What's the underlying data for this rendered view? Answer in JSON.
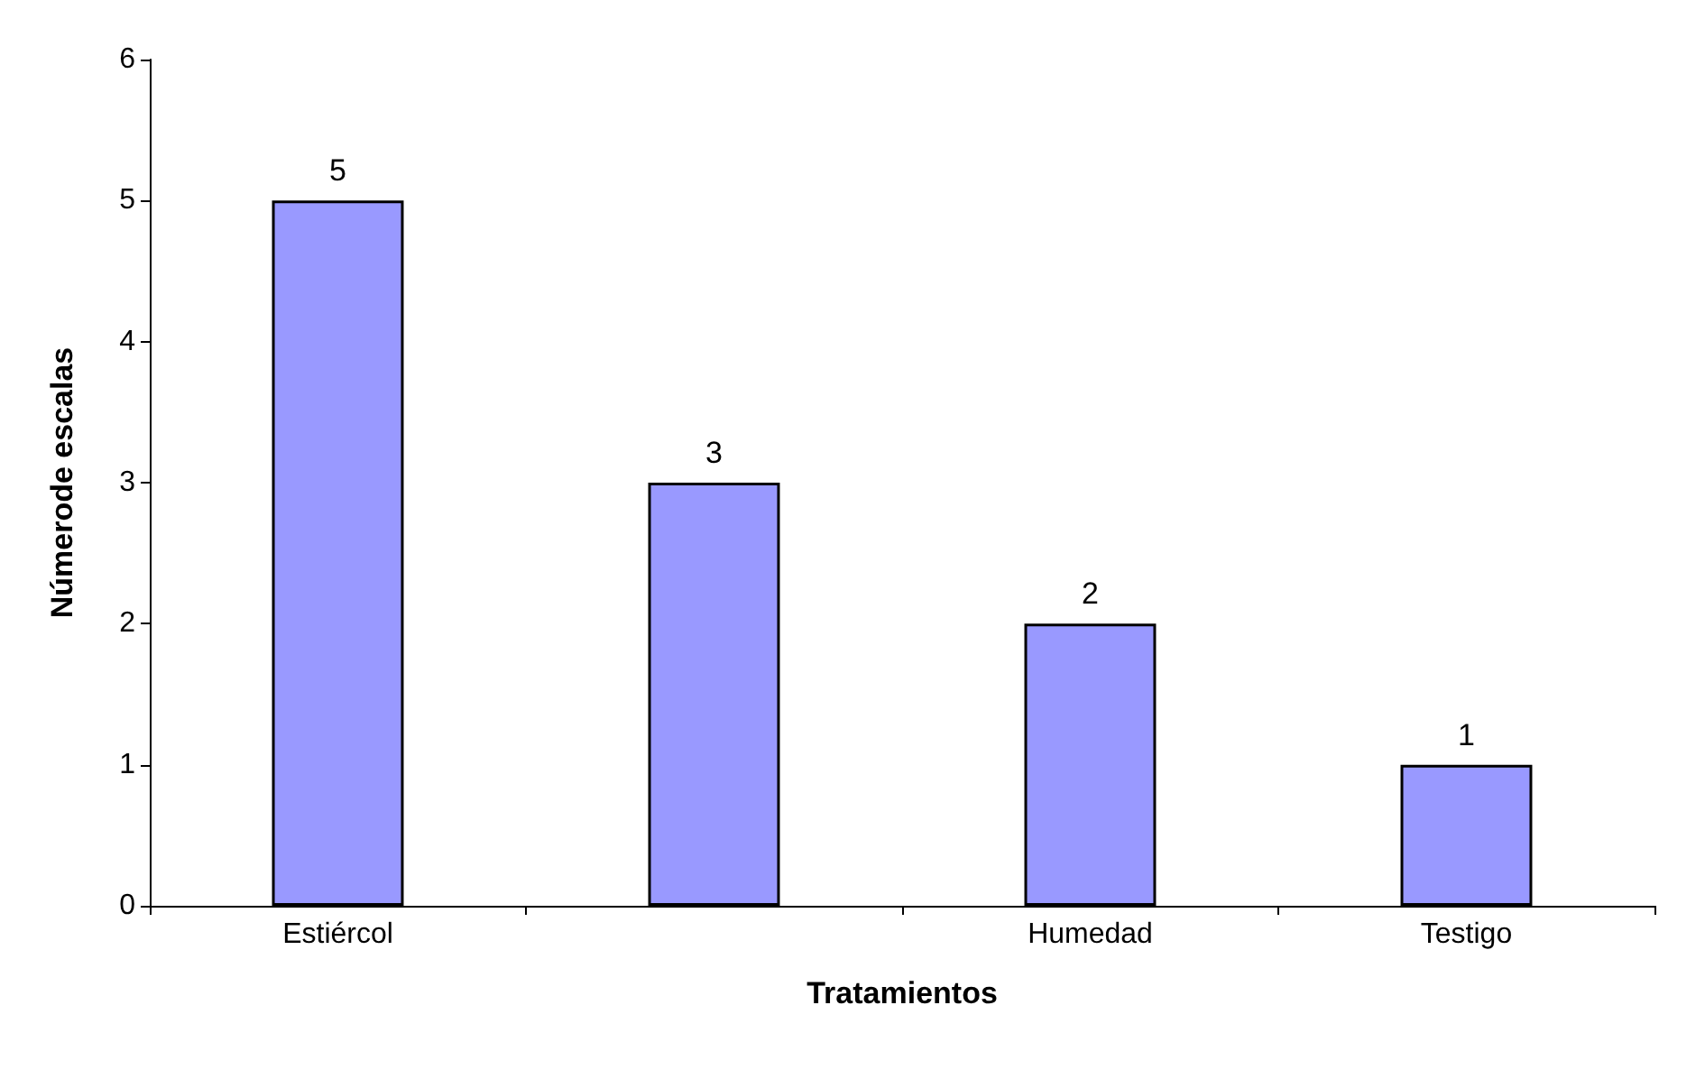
{
  "chart_data": {
    "type": "bar",
    "xlabel": "Tratamientos",
    "ylabel": "Númerode escalas",
    "categories": [
      "Estiércol",
      null,
      "Humedad",
      "Testigo"
    ],
    "values": [
      5,
      3,
      2,
      1
    ],
    "color": "#9999ff",
    "ylim": [
      0,
      6
    ],
    "yticks": [
      0,
      1,
      2,
      3,
      4,
      5,
      6
    ],
    "grid": false,
    "data_labels": true
  }
}
